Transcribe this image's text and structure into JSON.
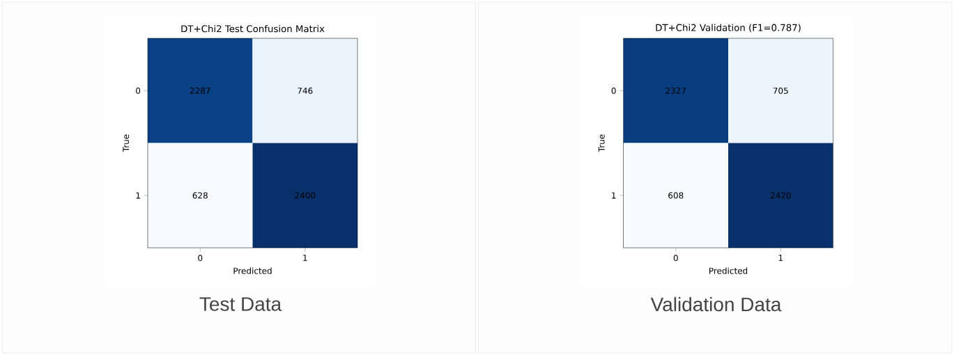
{
  "chart_data": [
    {
      "type": "heatmap",
      "title": "DT+Chi2 Test Confusion Matrix",
      "xlabel": "Predicted",
      "ylabel": "True",
      "categories": [
        "0",
        "1"
      ],
      "y_categories": [
        "0",
        "1"
      ],
      "cells": [
        [
          2287,
          746
        ],
        [
          628,
          2400
        ]
      ],
      "data_labels": true,
      "annotations": [
        "Test Data"
      ]
    },
    {
      "type": "heatmap",
      "title": "DT+Chi2 Validation (F1=0.787)",
      "xlabel": "Predicted",
      "ylabel": "True",
      "categories": [
        "0",
        "1"
      ],
      "y_categories": [
        "0",
        "1"
      ],
      "cells": [
        [
          2327,
          705
        ],
        [
          608,
          2420
        ]
      ],
      "data_labels": true,
      "annotations": [
        "Validation Data"
      ]
    }
  ]
}
